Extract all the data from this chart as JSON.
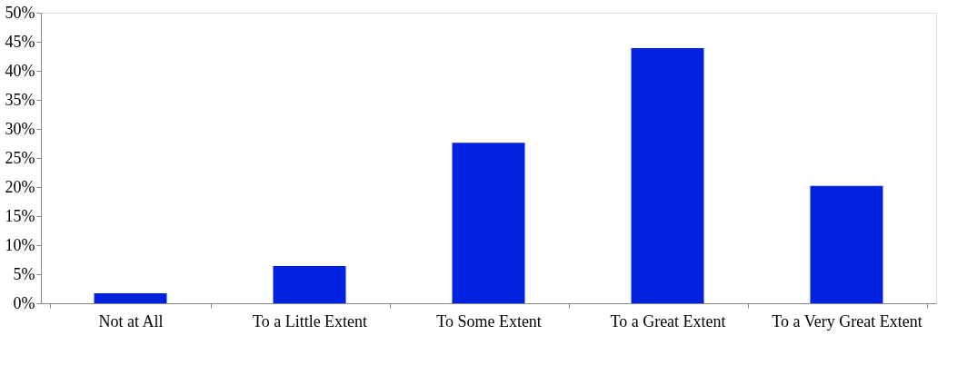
{
  "chart_data": {
    "type": "bar",
    "categories": [
      "Not at All",
      "To a Little Extent",
      "To Some Extent",
      "To a Great Extent",
      "To a Very Great Extent"
    ],
    "values": [
      1.7,
      6.4,
      27.6,
      43.9,
      20.2
    ],
    "color": "#0022e0",
    "ylim": [
      0,
      50
    ],
    "yticks": [
      {
        "value": 0,
        "label": "0%"
      },
      {
        "value": 5,
        "label": "5%"
      },
      {
        "value": 10,
        "label": "10%"
      },
      {
        "value": 15,
        "label": "15%"
      },
      {
        "value": 20,
        "label": "20%"
      },
      {
        "value": 25,
        "label": "25%"
      },
      {
        "value": 30,
        "label": "30%"
      },
      {
        "value": 35,
        "label": "35%"
      },
      {
        "value": 40,
        "label": "40%"
      },
      {
        "value": 45,
        "label": "45%"
      },
      {
        "value": 50,
        "label": "50%"
      }
    ],
    "grid": false
  }
}
